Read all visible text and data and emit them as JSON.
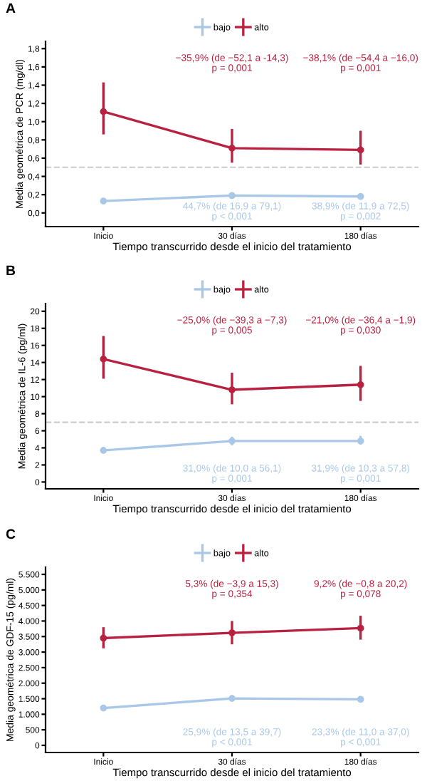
{
  "chart_data": [
    {
      "type": "line",
      "title": "A",
      "xlabel": "Tiempo transcurrido desde el inicio del tratamiento",
      "ylabel": "Media geométrica de PCR (mg/dl)",
      "categories": [
        "Inicio",
        "30 días",
        "180 días"
      ],
      "ylim": [
        -0.15,
        1.88
      ],
      "yticks": [
        {
          "value": 0,
          "label": "0,0"
        },
        {
          "value": 0.2,
          "label": "0,2"
        },
        {
          "value": 0.4,
          "label": "0,4"
        },
        {
          "value": 0.6,
          "label": "0,6"
        },
        {
          "value": 0.8,
          "label": "0,8"
        },
        {
          "value": 1,
          "label": "1,0"
        },
        {
          "value": 1.2,
          "label": "1,2"
        },
        {
          "value": 1.4,
          "label": "1,4"
        },
        {
          "value": 1.6,
          "label": "1,6"
        },
        {
          "value": 1.8,
          "label": "1,8"
        }
      ],
      "series": [
        {
          "name": "bajo",
          "color": "#a9c8e8",
          "values": [
            0.13,
            0.19,
            0.18
          ],
          "errors": [
            [
              0.12,
              0.14
            ],
            [
              0.18,
              0.2
            ],
            [
              0.17,
              0.19
            ]
          ]
        },
        {
          "name": "alto",
          "color": "#b8213f",
          "values": [
            1.11,
            0.71,
            0.69
          ],
          "errors": [
            [
              0.86,
              1.43
            ],
            [
              0.55,
              0.92
            ],
            [
              0.53,
              0.9
            ]
          ]
        }
      ],
      "ref_lines": [
        {
          "axis": "y",
          "value": 0.5,
          "color": "#cccccc",
          "line_style": "dashed"
        }
      ],
      "annotations": [
        "−35,9% (de −52,1 a -14,3)\np = 0,001",
        "−38,1% (de −54,4 a −16,0)\np = 0,001",
        "44,7% (de 16,9 a 79,1)\np < 0,001",
        "38,9% (de 11,9 a 72,5)\np = 0,002"
      ],
      "legend": "top",
      "marker": "circle",
      "line_style": "solid",
      "grid": false
    },
    {
      "type": "line",
      "title": "B",
      "xlabel": "Tiempo transcurrido desde el inicio del tratamiento",
      "ylabel": "Media geométrica de IL-6 (pg/ml)",
      "categories": [
        "Inicio",
        "30 días",
        "180 días"
      ],
      "ylim": [
        -0.8,
        20.9
      ],
      "yticks": [
        0,
        2,
        4,
        6,
        8,
        10,
        12,
        14,
        16,
        18,
        20
      ],
      "series": [
        {
          "name": "bajo",
          "color": "#a9c8e8",
          "values": [
            3.7,
            4.8,
            4.8
          ],
          "errors": [
            [
              3.4,
              4.1
            ],
            [
              4.3,
              5.3
            ],
            [
              4.4,
              5.4
            ]
          ]
        },
        {
          "name": "alto",
          "color": "#b8213f",
          "values": [
            14.4,
            10.8,
            11.4
          ],
          "errors": [
            [
              12.1,
              17.1
            ],
            [
              9.1,
              12.8
            ],
            [
              9.5,
              13.6
            ]
          ]
        }
      ],
      "ref_lines": [
        {
          "axis": "y",
          "value": 7,
          "color": "#cccccc",
          "line_style": "dashed"
        }
      ],
      "annotations": [
        "−25,0% (de −39,3 a −7,3)\np = 0,005",
        "−21,0% (de −36,4 a −1,9)\np = 0,030",
        "31,0% (de 10,0 a 56,1)\np = 0,001",
        "31,9% (de 10,3 a 57,8)\np = 0,001"
      ],
      "legend": "top",
      "marker": "circle",
      "line_style": "solid",
      "grid": false
    },
    {
      "type": "line",
      "title": "C",
      "xlabel": "Tiempo transcurrido desde el inicio del tratamiento",
      "ylabel": "Media geométrica de GDF-15 (pg/ml)",
      "categories": [
        "Inicio",
        "30 días",
        "180 días"
      ],
      "ylim": [
        -230,
        5730
      ],
      "yticks": [
        0,
        500,
        {
          "value": 1000,
          "label": "1.000"
        },
        {
          "value": 1500,
          "label": "1.500"
        },
        {
          "value": 2000,
          "label": "2.000"
        },
        {
          "value": 2500,
          "label": "2.500"
        },
        {
          "value": 3000,
          "label": "3.000"
        },
        {
          "value": 3500,
          "label": "3.500"
        },
        {
          "value": 4000,
          "label": "4.000"
        },
        {
          "value": 4500,
          "label": "4.500"
        },
        {
          "value": 5000,
          "label": "5.000"
        },
        {
          "value": 5500,
          "label": "5.500"
        }
      ],
      "series": [
        {
          "name": "bajo",
          "color": "#a9c8e8",
          "values": [
            1200,
            1510,
            1480
          ],
          "errors": [
            [
              1130,
              1270
            ],
            [
              1420,
              1610
            ],
            [
              1390,
              1580
            ]
          ]
        },
        {
          "name": "alto",
          "color": "#b8213f",
          "values": [
            3450,
            3620,
            3770
          ],
          "errors": [
            [
              3120,
              3800
            ],
            [
              3250,
              4000
            ],
            [
              3400,
              4170
            ]
          ]
        }
      ],
      "annotations": [
        "5,3% (de −3,9 a 15,3)\np = 0,354",
        "9,2% (de −0,8 a 20,2)\np = 0,078",
        "25,9% (de 13,5 a 39,7)\np < 0,001",
        "23,3% (de 11,0 a 37,0)\np < 0,001"
      ],
      "legend": "top",
      "marker": "circle",
      "line_style": "solid",
      "grid": false
    }
  ]
}
